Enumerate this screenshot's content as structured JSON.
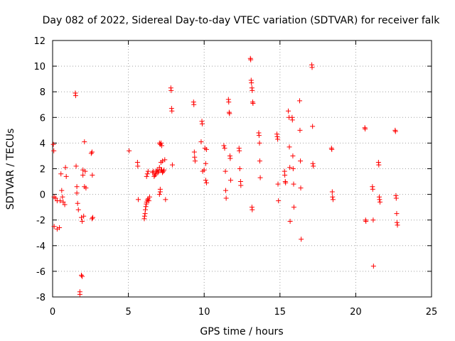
{
  "chart_data": {
    "type": "scatter",
    "title": "Day 082 of 2022, Sidereal Day-to-day VTEC variation (SDTVAR) for receiver falk",
    "xlabel": "GPS time / hours",
    "ylabel": "SDTVAR / TECUs",
    "xlim": [
      0,
      25
    ],
    "ylim": [
      -8,
      12
    ],
    "xticks": [
      0,
      5,
      10,
      15,
      20,
      25
    ],
    "yticks": [
      -8,
      -6,
      -4,
      -2,
      0,
      2,
      4,
      6,
      8,
      10,
      12
    ],
    "grid": true,
    "marker": "+",
    "color": "#ff0000",
    "points": [
      [
        0.05,
        3.9
      ],
      [
        0.08,
        3.4
      ],
      [
        0.1,
        -0.2
      ],
      [
        0.1,
        -2.5
      ],
      [
        0.2,
        -0.3
      ],
      [
        0.3,
        -2.7
      ],
      [
        0.3,
        -0.5
      ],
      [
        0.45,
        -2.6
      ],
      [
        0.5,
        -0.5
      ],
      [
        0.55,
        1.6
      ],
      [
        0.6,
        0.3
      ],
      [
        0.65,
        -0.2
      ],
      [
        0.7,
        -0.6
      ],
      [
        0.8,
        -0.8
      ],
      [
        0.85,
        2.1
      ],
      [
        0.9,
        1.4
      ],
      [
        1.5,
        7.9
      ],
      [
        1.52,
        7.7
      ],
      [
        1.55,
        2.2
      ],
      [
        1.6,
        0.6
      ],
      [
        1.6,
        0.1
      ],
      [
        1.65,
        -0.7
      ],
      [
        1.7,
        -1.2
      ],
      [
        1.8,
        -7.6
      ],
      [
        1.8,
        -7.8
      ],
      [
        1.9,
        -1.8
      ],
      [
        1.95,
        -2.1
      ],
      [
        1.9,
        -6.3
      ],
      [
        1.95,
        -6.4
      ],
      [
        2.0,
        1.9
      ],
      [
        2.0,
        1.5
      ],
      [
        2.05,
        -1.7
      ],
      [
        2.1,
        4.1
      ],
      [
        2.1,
        0.6
      ],
      [
        2.15,
        1.8
      ],
      [
        2.2,
        0.5
      ],
      [
        2.55,
        3.2
      ],
      [
        2.6,
        3.3
      ],
      [
        2.6,
        -1.9
      ],
      [
        2.62,
        1.5
      ],
      [
        2.65,
        -1.8
      ],
      [
        5.05,
        3.4
      ],
      [
        5.6,
        2.5
      ],
      [
        5.62,
        2.2
      ],
      [
        5.65,
        -0.4
      ],
      [
        6.05,
        -1.9
      ],
      [
        6.07,
        -1.7
      ],
      [
        6.1,
        -1.5
      ],
      [
        6.12,
        -1.2
      ],
      [
        6.15,
        -0.95
      ],
      [
        6.18,
        -0.75
      ],
      [
        6.2,
        -0.6
      ],
      [
        6.25,
        -0.45
      ],
      [
        6.3,
        -0.35
      ],
      [
        6.35,
        -0.5
      ],
      [
        6.4,
        -0.2
      ],
      [
        6.2,
        1.4
      ],
      [
        6.25,
        1.6
      ],
      [
        6.3,
        1.8
      ],
      [
        6.6,
        1.7
      ],
      [
        6.65,
        1.8
      ],
      [
        6.7,
        1.4
      ],
      [
        6.75,
        1.5
      ],
      [
        6.8,
        1.6
      ],
      [
        6.85,
        1.8
      ],
      [
        6.9,
        1.9
      ],
      [
        6.95,
        1.7
      ],
      [
        7.0,
        1.8
      ],
      [
        7.05,
        2.1
      ],
      [
        7.05,
        0.0
      ],
      [
        7.1,
        0.2
      ],
      [
        7.1,
        0.4
      ],
      [
        7.15,
        1.9
      ],
      [
        7.15,
        2.5
      ],
      [
        7.2,
        1.9
      ],
      [
        7.25,
        1.7
      ],
      [
        7.25,
        2.6
      ],
      [
        7.3,
        1.8
      ],
      [
        7.35,
        1.9
      ],
      [
        7.05,
        4.0
      ],
      [
        7.1,
        3.9
      ],
      [
        7.15,
        4.0
      ],
      [
        7.2,
        3.8
      ],
      [
        7.4,
        2.7
      ],
      [
        7.45,
        -0.4
      ],
      [
        7.8,
        8.3
      ],
      [
        7.82,
        8.1
      ],
      [
        7.85,
        6.7
      ],
      [
        7.87,
        6.5
      ],
      [
        7.9,
        2.3
      ],
      [
        9.3,
        7.2
      ],
      [
        9.32,
        7.0
      ],
      [
        9.35,
        3.3
      ],
      [
        9.37,
        2.9
      ],
      [
        9.4,
        2.6
      ],
      [
        9.8,
        4.1
      ],
      [
        9.85,
        5.7
      ],
      [
        9.87,
        5.5
      ],
      [
        9.9,
        1.8
      ],
      [
        10.0,
        1.9
      ],
      [
        10.05,
        3.6
      ],
      [
        10.1,
        2.4
      ],
      [
        10.15,
        3.5
      ],
      [
        10.1,
        1.1
      ],
      [
        10.15,
        0.9
      ],
      [
        11.3,
        3.8
      ],
      [
        11.35,
        3.6
      ],
      [
        11.4,
        1.8
      ],
      [
        11.42,
        0.3
      ],
      [
        11.45,
        -0.3
      ],
      [
        11.6,
        7.4
      ],
      [
        11.62,
        7.2
      ],
      [
        11.65,
        6.4
      ],
      [
        11.67,
        6.3
      ],
      [
        11.7,
        3.0
      ],
      [
        11.72,
        2.8
      ],
      [
        11.75,
        1.1
      ],
      [
        12.3,
        3.6
      ],
      [
        12.32,
        3.4
      ],
      [
        12.35,
        2.0
      ],
      [
        12.4,
        1.0
      ],
      [
        12.42,
        0.7
      ],
      [
        13.05,
        10.6
      ],
      [
        13.07,
        10.5
      ],
      [
        13.1,
        8.9
      ],
      [
        13.12,
        8.7
      ],
      [
        13.15,
        8.3
      ],
      [
        13.17,
        8.1
      ],
      [
        13.2,
        7.2
      ],
      [
        13.22,
        7.1
      ],
      [
        13.15,
        -1.0
      ],
      [
        13.17,
        -1.2
      ],
      [
        13.6,
        4.8
      ],
      [
        13.62,
        4.6
      ],
      [
        13.65,
        4.0
      ],
      [
        13.67,
        2.6
      ],
      [
        13.7,
        1.3
      ],
      [
        14.8,
        4.7
      ],
      [
        14.82,
        4.5
      ],
      [
        14.85,
        4.3
      ],
      [
        14.87,
        0.8
      ],
      [
        14.9,
        -0.5
      ],
      [
        15.3,
        1.8
      ],
      [
        15.32,
        1.5
      ],
      [
        15.35,
        1.0
      ],
      [
        15.37,
        0.9
      ],
      [
        15.55,
        6.5
      ],
      [
        15.6,
        6.0
      ],
      [
        15.62,
        3.7
      ],
      [
        15.65,
        2.1
      ],
      [
        15.67,
        -2.1
      ],
      [
        15.8,
        6.0
      ],
      [
        15.82,
        5.8
      ],
      [
        15.85,
        3.0
      ],
      [
        15.87,
        2.0
      ],
      [
        15.9,
        0.8
      ],
      [
        15.92,
        -1.0
      ],
      [
        16.3,
        7.3
      ],
      [
        16.32,
        5.0
      ],
      [
        16.35,
        2.6
      ],
      [
        16.37,
        0.5
      ],
      [
        16.4,
        -3.5
      ],
      [
        17.1,
        10.1
      ],
      [
        17.12,
        9.9
      ],
      [
        17.15,
        5.3
      ],
      [
        17.17,
        2.4
      ],
      [
        17.2,
        2.2
      ],
      [
        18.4,
        3.6
      ],
      [
        18.42,
        3.5
      ],
      [
        18.45,
        0.2
      ],
      [
        18.47,
        -0.2
      ],
      [
        18.5,
        -0.4
      ],
      [
        20.6,
        5.2
      ],
      [
        20.62,
        5.1
      ],
      [
        20.65,
        -2.0
      ],
      [
        20.67,
        -2.1
      ],
      [
        21.1,
        0.6
      ],
      [
        21.12,
        0.4
      ],
      [
        21.15,
        -2.0
      ],
      [
        21.17,
        -5.6
      ],
      [
        21.5,
        2.5
      ],
      [
        21.52,
        2.3
      ],
      [
        21.55,
        -0.2
      ],
      [
        21.57,
        -0.4
      ],
      [
        21.6,
        -0.6
      ],
      [
        22.6,
        5.0
      ],
      [
        22.62,
        4.9
      ],
      [
        22.65,
        -0.1
      ],
      [
        22.67,
        -0.3
      ],
      [
        22.7,
        -1.5
      ],
      [
        22.72,
        -2.2
      ],
      [
        22.75,
        -2.4
      ]
    ]
  }
}
